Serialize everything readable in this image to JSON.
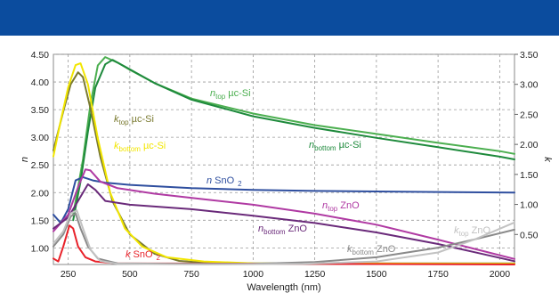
{
  "colors": {
    "header": "#0b4c9e",
    "n_top_uc_si": "#4caf50",
    "n_bottom_uc_si": "#1e8a3c",
    "k_top_uc_si": "#7a7a30",
    "k_bottom_uc_si": "#f2e600",
    "n_sno2": "#2f4f9f",
    "k_sno2": "#e8222a",
    "n_top_zno": "#b03aa3",
    "n_bottom_zno": "#6a2a7a",
    "k_bottom_zno": "#8a8a8a",
    "k_top_zno": "#c2c2c2"
  },
  "chart_data": {
    "type": "line",
    "title": "",
    "xlabel": "Wavelength (nm)",
    "ylabel": "n",
    "y2label": "k",
    "xlim": [
      190,
      2060
    ],
    "ylim": [
      0.7,
      4.5
    ],
    "y2lim": [
      0.0,
      3.5
    ],
    "grid": true,
    "x_ticks": [
      "250",
      "500",
      "750",
      "1000",
      "1250",
      "1500",
      "1750",
      "2000"
    ],
    "y_ticks": [
      "4.50",
      "4.00",
      "3.50",
      "3.00",
      "2.50",
      "2.00",
      "1.50",
      "1.00"
    ],
    "y2_ticks": [
      "3.50",
      "3.00",
      "2.50",
      "2.00",
      "1.50",
      "1.00",
      "0.50"
    ],
    "annotations": {
      "n_top_uc_si": {
        "var": "n",
        "sub": "top",
        "text": "µc-Si"
      },
      "n_bottom_uc_si": {
        "var": "n",
        "sub": "bottom",
        "text": "µc-Si"
      },
      "k_top_uc_si": {
        "var": "k",
        "sub": "top",
        "text": "µc-Si"
      },
      "k_bottom_uc_si": {
        "var": "k",
        "sub": "bottom",
        "text": "µc-Si"
      },
      "n_sno2": {
        "var": "n",
        "text": "SnO",
        "sub2": "2"
      },
      "k_sno2": {
        "var": "k",
        "text": "SnO",
        "sub2": "2"
      },
      "n_top_zno": {
        "var": "n",
        "sub": "top",
        "text": "ZnO"
      },
      "n_bottom_zno": {
        "var": "n",
        "sub": "bottom",
        "text": "ZnO"
      },
      "k_bottom_zno": {
        "var": "k",
        "sub": "bottom",
        "text": "ZnO"
      },
      "k_top_zno": {
        "var": "k",
        "sub": "top",
        "text": "ZnO"
      }
    },
    "series": [
      {
        "key": "n_top_uc_si",
        "axis": "left",
        "color": "#4caf50",
        "points": [
          [
            270,
            1.6
          ],
          [
            310,
            2.6
          ],
          [
            340,
            3.6
          ],
          [
            370,
            4.3
          ],
          [
            400,
            4.45
          ],
          [
            450,
            4.35
          ],
          [
            500,
            4.22
          ],
          [
            600,
            3.98
          ],
          [
            750,
            3.7
          ],
          [
            1000,
            3.43
          ],
          [
            1250,
            3.22
          ],
          [
            1500,
            3.06
          ],
          [
            1750,
            2.9
          ],
          [
            2000,
            2.75
          ],
          [
            2060,
            2.7
          ]
        ]
      },
      {
        "key": "n_bottom_uc_si",
        "axis": "left",
        "color": "#1e8a3c",
        "points": [
          [
            270,
            1.5
          ],
          [
            300,
            2.2
          ],
          [
            330,
            3.1
          ],
          [
            360,
            3.9
          ],
          [
            400,
            4.32
          ],
          [
            430,
            4.4
          ],
          [
            480,
            4.28
          ],
          [
            600,
            3.98
          ],
          [
            750,
            3.68
          ],
          [
            1000,
            3.38
          ],
          [
            1250,
            3.17
          ],
          [
            1500,
            2.99
          ],
          [
            1750,
            2.82
          ],
          [
            2000,
            2.65
          ],
          [
            2060,
            2.6
          ]
        ]
      },
      {
        "key": "k_top_uc_si",
        "axis": "right",
        "color": "#7a7a30",
        "points": [
          [
            190,
            1.9
          ],
          [
            230,
            2.55
          ],
          [
            260,
            3.0
          ],
          [
            290,
            3.2
          ],
          [
            310,
            3.12
          ],
          [
            340,
            2.6
          ],
          [
            380,
            1.8
          ],
          [
            430,
            1.05
          ],
          [
            500,
            0.5
          ],
          [
            600,
            0.18
          ],
          [
            700,
            0.06
          ],
          [
            800,
            0.03
          ],
          [
            1000,
            0.02
          ],
          [
            2060,
            0.02
          ]
        ]
      },
      {
        "key": "k_bottom_uc_si",
        "axis": "right",
        "color": "#f2e600",
        "points": [
          [
            190,
            1.8
          ],
          [
            220,
            2.4
          ],
          [
            250,
            2.95
          ],
          [
            280,
            3.32
          ],
          [
            300,
            3.35
          ],
          [
            330,
            3.0
          ],
          [
            370,
            2.1
          ],
          [
            420,
            1.2
          ],
          [
            480,
            0.6
          ],
          [
            550,
            0.3
          ],
          [
            650,
            0.12
          ],
          [
            800,
            0.05
          ],
          [
            1000,
            0.02
          ],
          [
            2060,
            0.01
          ]
        ]
      },
      {
        "key": "n_sno2",
        "axis": "left",
        "color": "#2f4f9f",
        "points": [
          [
            190,
            1.6
          ],
          [
            220,
            1.45
          ],
          [
            250,
            1.7
          ],
          [
            280,
            2.22
          ],
          [
            310,
            2.28
          ],
          [
            350,
            2.22
          ],
          [
            400,
            2.18
          ],
          [
            500,
            2.14
          ],
          [
            750,
            2.08
          ],
          [
            1000,
            2.05
          ],
          [
            1250,
            2.03
          ],
          [
            1500,
            2.02
          ],
          [
            1750,
            2.01
          ],
          [
            2060,
            2.0
          ]
        ]
      },
      {
        "key": "k_sno2",
        "axis": "right",
        "color": "#e8222a",
        "points": [
          [
            190,
            0.1
          ],
          [
            210,
            0.05
          ],
          [
            230,
            0.3
          ],
          [
            255,
            0.65
          ],
          [
            270,
            0.6
          ],
          [
            290,
            0.3
          ],
          [
            320,
            0.12
          ],
          [
            360,
            0.05
          ],
          [
            450,
            0.02
          ],
          [
            2060,
            0.0
          ]
        ]
      },
      {
        "key": "n_top_zno",
        "axis": "left",
        "color": "#b03aa3",
        "points": [
          [
            190,
            1.3
          ],
          [
            250,
            1.6
          ],
          [
            290,
            2.1
          ],
          [
            320,
            2.42
          ],
          [
            340,
            2.4
          ],
          [
            380,
            2.2
          ],
          [
            450,
            2.08
          ],
          [
            600,
            1.98
          ],
          [
            800,
            1.88
          ],
          [
            1000,
            1.78
          ],
          [
            1250,
            1.62
          ],
          [
            1500,
            1.42
          ],
          [
            1750,
            1.15
          ],
          [
            1900,
            0.98
          ],
          [
            2060,
            0.8
          ]
        ]
      },
      {
        "key": "n_bottom_zno",
        "axis": "left",
        "color": "#6a2a7a",
        "points": [
          [
            190,
            1.35
          ],
          [
            250,
            1.55
          ],
          [
            290,
            1.85
          ],
          [
            330,
            2.15
          ],
          [
            360,
            2.05
          ],
          [
            400,
            1.85
          ],
          [
            500,
            1.78
          ],
          [
            750,
            1.7
          ],
          [
            1000,
            1.58
          ],
          [
            1250,
            1.45
          ],
          [
            1500,
            1.28
          ],
          [
            1750,
            1.07
          ],
          [
            1900,
            0.92
          ],
          [
            2060,
            0.76
          ]
        ]
      },
      {
        "key": "k_bottom_zno",
        "axis": "right",
        "color": "#8a8a8a",
        "points": [
          [
            190,
            0.3
          ],
          [
            230,
            0.5
          ],
          [
            260,
            0.8
          ],
          [
            280,
            0.85
          ],
          [
            300,
            0.6
          ],
          [
            330,
            0.3
          ],
          [
            370,
            0.1
          ],
          [
            450,
            0.02
          ],
          [
            700,
            0.01
          ],
          [
            1000,
            0.01
          ],
          [
            1250,
            0.04
          ],
          [
            1500,
            0.12
          ],
          [
            1750,
            0.28
          ],
          [
            1900,
            0.42
          ],
          [
            2060,
            0.58
          ]
        ]
      },
      {
        "key": "k_top_zno",
        "axis": "right",
        "color": "#c2c2c2",
        "points": [
          [
            190,
            0.35
          ],
          [
            230,
            0.55
          ],
          [
            260,
            0.85
          ],
          [
            285,
            0.9
          ],
          [
            310,
            0.6
          ],
          [
            340,
            0.25
          ],
          [
            380,
            0.06
          ],
          [
            450,
            0.01
          ],
          [
            800,
            0.0
          ],
          [
            1200,
            0.01
          ],
          [
            1500,
            0.05
          ],
          [
            1750,
            0.2
          ],
          [
            1900,
            0.42
          ],
          [
            2060,
            0.7
          ]
        ]
      }
    ]
  }
}
